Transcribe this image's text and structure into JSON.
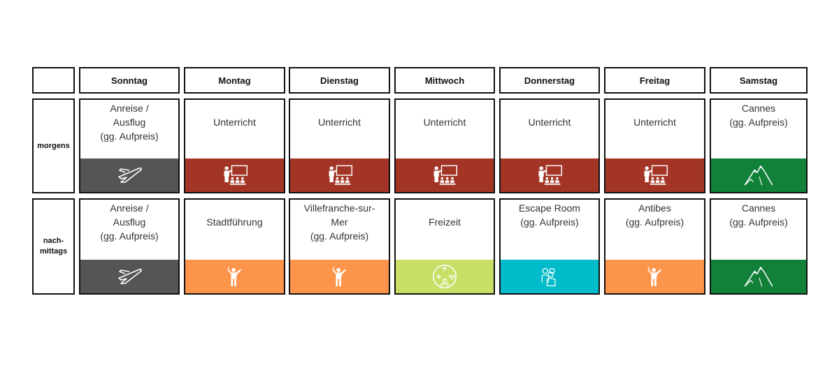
{
  "days": [
    "Sonntag",
    "Montag",
    "Dienstag",
    "Mittwoch",
    "Donnerstag",
    "Freitag",
    "Samstag"
  ],
  "row_labels": {
    "morning": "morgens",
    "afternoon_line1": "nach-",
    "afternoon_line2": "mittags"
  },
  "colors": {
    "travel": "#555555",
    "lesson": "#a33526",
    "tour": "#fd944b",
    "freetime": "#c8df67",
    "escape": "#00bcca",
    "excursion": "#118038"
  },
  "morning": [
    {
      "lines": [
        "Anreise /",
        "Ausflug",
        "(gg. Aufpreis)"
      ],
      "category": "travel",
      "icon": "airplane-icon"
    },
    {
      "lines": [
        "Unterricht"
      ],
      "category": "lesson",
      "icon": "teacher-icon"
    },
    {
      "lines": [
        "Unterricht"
      ],
      "category": "lesson",
      "icon": "teacher-icon"
    },
    {
      "lines": [
        "Unterricht"
      ],
      "category": "lesson",
      "icon": "teacher-icon"
    },
    {
      "lines": [
        "Unterricht"
      ],
      "category": "lesson",
      "icon": "teacher-icon"
    },
    {
      "lines": [
        "Unterricht"
      ],
      "category": "lesson",
      "icon": "teacher-icon"
    },
    {
      "lines": [
        "Cannes",
        "(gg. Aufpreis)"
      ],
      "category": "excursion",
      "icon": "mountain-icon"
    }
  ],
  "afternoon": [
    {
      "lines": [
        "Anreise /",
        "Ausflug",
        "(gg. Aufpreis)"
      ],
      "category": "travel",
      "icon": "airplane-icon"
    },
    {
      "lines": [
        "Stadtführung"
      ],
      "category": "tour",
      "icon": "guide-icon"
    },
    {
      "lines": [
        "Villefranche-sur-",
        "Mer",
        "(gg. Aufpreis)"
      ],
      "category": "tour",
      "icon": "guide-icon"
    },
    {
      "lines": [
        "Freizeit"
      ],
      "category": "freetime",
      "icon": "freetime-icon"
    },
    {
      "lines": [
        "Escape Room",
        "(gg. Aufpreis)"
      ],
      "category": "escape",
      "icon": "group-icon"
    },
    {
      "lines": [
        "Antibes",
        "(gg. Aufpreis)"
      ],
      "category": "tour",
      "icon": "guide-icon"
    },
    {
      "lines": [
        "Cannes",
        "(gg. Aufpreis)"
      ],
      "category": "excursion",
      "icon": "mountain-icon"
    }
  ]
}
